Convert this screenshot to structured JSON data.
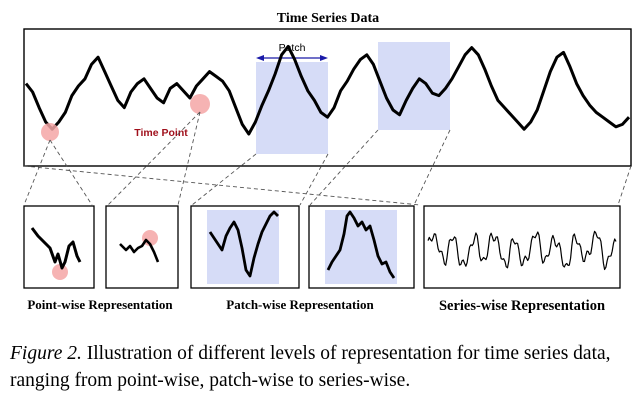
{
  "figure": {
    "title": "Time Series Data",
    "patch_label": "Patch",
    "time_point_label": "Time Point",
    "labels": {
      "point_wise": "Point-wise Representation",
      "patch_wise": "Patch-wise Representation",
      "series_wise": "Series-wise Representation"
    },
    "colors": {
      "highlight_patch": "#d6dcf7",
      "time_point_marker": "#f4a6a6",
      "patch_arrow": "#1a1aa8",
      "time_point_text": "#a0101c",
      "series_line": "#000000"
    },
    "series_main": [
      0.62,
      0.55,
      0.42,
      0.3,
      0.24,
      0.3,
      0.38,
      0.52,
      0.6,
      0.66,
      0.78,
      0.84,
      0.72,
      0.6,
      0.48,
      0.42,
      0.55,
      0.62,
      0.66,
      0.58,
      0.5,
      0.46,
      0.58,
      0.62,
      0.56,
      0.5,
      0.6,
      0.66,
      0.72,
      0.68,
      0.64,
      0.56,
      0.42,
      0.28,
      0.2,
      0.3,
      0.44,
      0.56,
      0.7,
      0.86,
      0.93,
      0.82,
      0.68,
      0.56,
      0.48,
      0.38,
      0.34,
      0.42,
      0.56,
      0.64,
      0.74,
      0.82,
      0.86,
      0.78,
      0.64,
      0.5,
      0.4,
      0.36,
      0.48,
      0.58,
      0.66,
      0.62,
      0.54,
      0.52,
      0.58,
      0.66,
      0.76,
      0.86,
      0.92,
      0.86,
      0.74,
      0.6,
      0.48,
      0.42,
      0.36,
      0.3,
      0.24,
      0.3,
      0.4,
      0.56,
      0.72,
      0.84,
      0.88,
      0.76,
      0.62,
      0.52,
      0.44,
      0.38,
      0.34,
      0.3,
      0.26,
      0.28,
      0.34
    ]
  },
  "caption": {
    "lead": "Figure 2.",
    "text": " Illustration of different levels of representation for time series data, ranging from point-wise, patch-wise to series-wise."
  }
}
